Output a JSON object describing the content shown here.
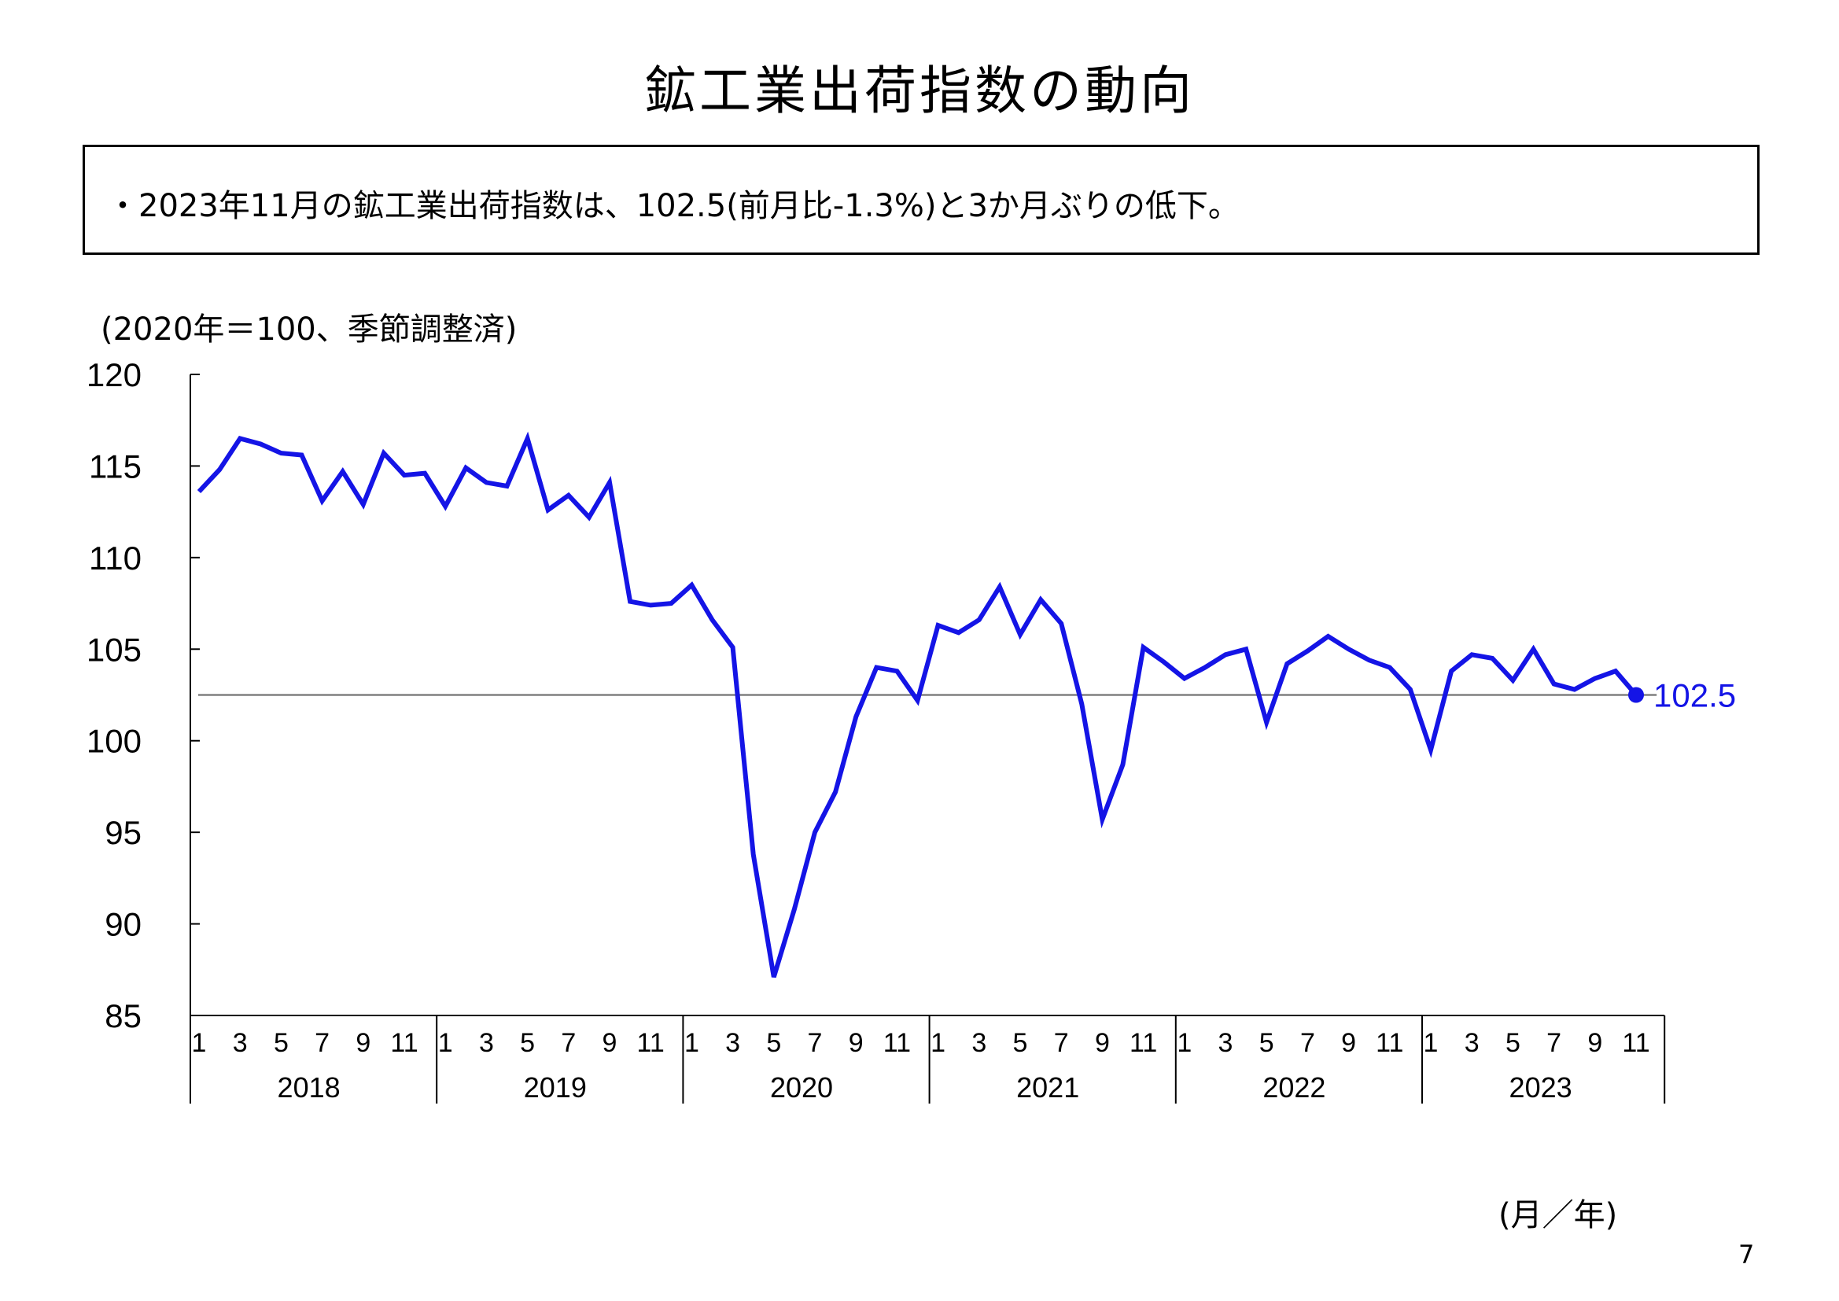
{
  "page": {
    "title": "鉱工業出荷指数の動向",
    "summary": "・2023年11月の鉱工業出荷指数は、102.5(前月比-1.3%)と3か月ぶりの低下。",
    "unit_label": "(2020年＝100、季節調整済)",
    "x_unit_label": "(月／年)",
    "page_number": "7"
  },
  "chart_data": {
    "type": "line",
    "title": "",
    "ylim": [
      85,
      120
    ],
    "yticks": [
      120,
      115,
      110,
      105,
      100,
      95,
      90,
      85
    ],
    "years": [
      "2018",
      "2019",
      "2020",
      "2021",
      "2022",
      "2023"
    ],
    "month_ticks": [
      "1",
      "3",
      "5",
      "7",
      "9",
      "11"
    ],
    "reference_line": 102.5,
    "latest_label": "102.5",
    "line_color": "#1414e6",
    "reference_color": "#808080",
    "series": [
      {
        "values": [
          113.6,
          114.8,
          116.5,
          116.2,
          115.7,
          115.6,
          113.1,
          114.7,
          112.9,
          115.7,
          114.5,
          114.6,
          112.8,
          114.9,
          114.1,
          113.9,
          116.5,
          112.6,
          113.4,
          112.2,
          114.1,
          107.6,
          107.4,
          107.5,
          108.5,
          106.6,
          105.1,
          93.8,
          87.1,
          90.8,
          95.0,
          97.2,
          101.3,
          104.0,
          103.8,
          102.2,
          106.3,
          105.9,
          106.6,
          108.4,
          105.8,
          107.7,
          106.4,
          102.0,
          95.7,
          98.7,
          105.1,
          104.3,
          103.4,
          104.0,
          104.7,
          105.0,
          101.0,
          104.2,
          104.9,
          105.7,
          105.0,
          104.4,
          104.0,
          102.8,
          99.5,
          103.8,
          104.7,
          104.5,
          103.3,
          105.0,
          103.1,
          102.8,
          103.4,
          103.8,
          102.5
        ]
      }
    ]
  }
}
